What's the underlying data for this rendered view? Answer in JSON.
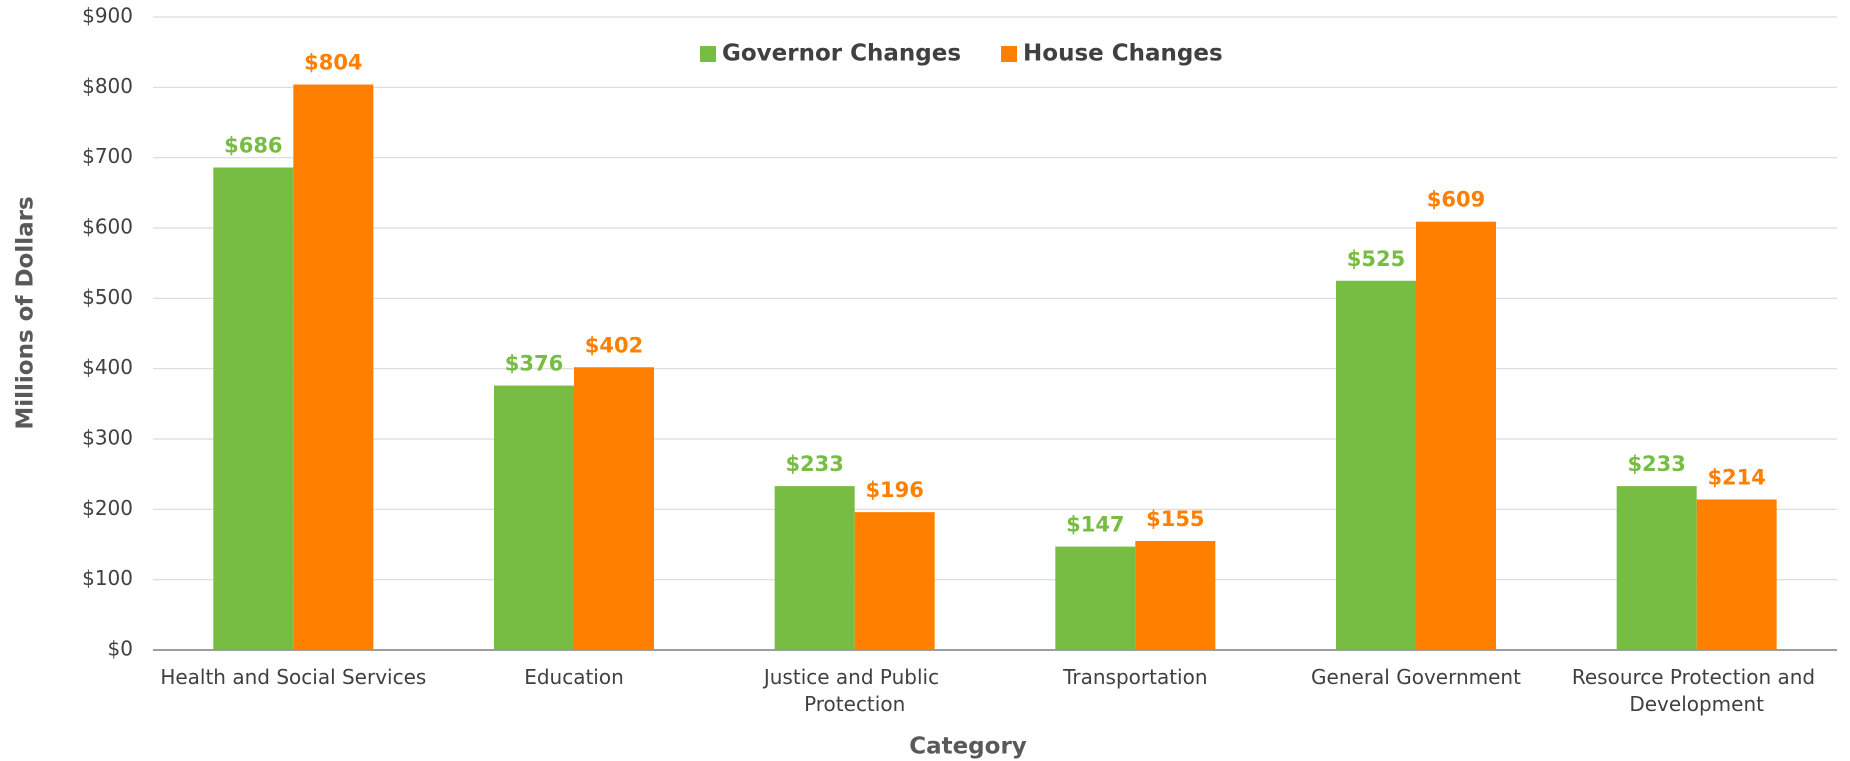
{
  "chart_data": {
    "type": "bar",
    "categories": [
      "Health and Social Services",
      "Education",
      "Justice and Public Protection",
      "Transportation",
      "General Government",
      "Resource Protection and Development"
    ],
    "series": [
      {
        "name": "Governor Changes",
        "color": "#77bc43",
        "values": [
          686,
          376,
          233,
          147,
          525,
          233
        ],
        "value_labels": [
          "$686",
          "$376",
          "$233",
          "$147",
          "$525",
          "$233"
        ]
      },
      {
        "name": "House Changes",
        "color": "#ff8000",
        "values": [
          804,
          402,
          196,
          155,
          609,
          214
        ],
        "value_labels": [
          "$804",
          "$402",
          "$196",
          "$155",
          "$609",
          "$214"
        ]
      }
    ],
    "x_label": "Category",
    "y_label": "Millions of Dollars",
    "ylim": [
      0,
      900
    ],
    "yticks": [
      {
        "value": 0,
        "label": "$0"
      },
      {
        "value": 100,
        "label": "$100"
      },
      {
        "value": 200,
        "label": "$200"
      },
      {
        "value": 300,
        "label": "$300"
      },
      {
        "value": 400,
        "label": "$400"
      },
      {
        "value": 500,
        "label": "$500"
      },
      {
        "value": 600,
        "label": "$600"
      },
      {
        "value": 700,
        "label": "$700"
      },
      {
        "value": 800,
        "label": "$800"
      },
      {
        "value": 900,
        "label": "$900"
      }
    ],
    "grid": true,
    "legend": "top"
  }
}
